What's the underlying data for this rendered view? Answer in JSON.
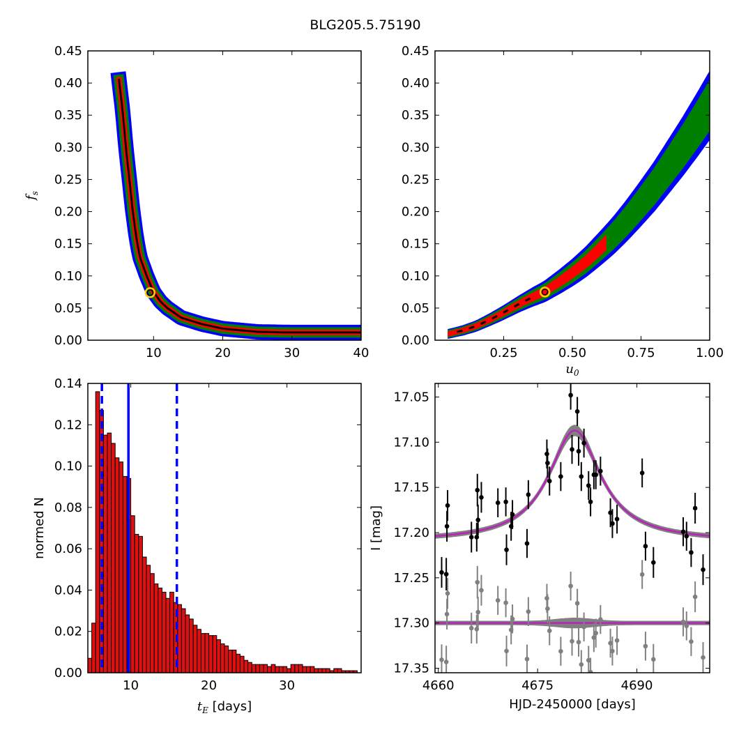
{
  "figure_title": "BLG205.5.75190",
  "colors": {
    "sigma1": "#ff0000",
    "sigma2": "#008000",
    "sigma3": "#0000ff",
    "best": "#000000",
    "marker": "#ffd000",
    "hist_bar": "#dd1111",
    "hist_line": "#0000ff",
    "model": "#bb22bb",
    "band": "#808080",
    "data": "#000000",
    "resid": "#808080"
  },
  "chart_data": [
    {
      "type": "heatmap",
      "xlabel": "",
      "ylabel": "f_s",
      "xlim": [
        0.5,
        40
      ],
      "ylim": [
        0,
        0.45
      ],
      "xticks": [
        "10",
        "20",
        "30",
        "40"
      ],
      "yticks": [
        "0.00",
        "0.05",
        "0.10",
        "0.15",
        "0.20",
        "0.25",
        "0.30",
        "0.35",
        "0.40",
        "0.45"
      ],
      "regions": "confidence contours sigma1 red, sigma2 green, sigma3 blue, best-fit black",
      "ridge": [
        [
          5.0,
          0.405
        ],
        [
          5.5,
          0.36
        ],
        [
          6.0,
          0.3
        ],
        [
          6.5,
          0.25
        ],
        [
          7.0,
          0.2
        ],
        [
          7.5,
          0.16
        ],
        [
          8.0,
          0.13
        ],
        [
          9.0,
          0.1
        ],
        [
          10.0,
          0.075
        ],
        [
          11.0,
          0.06
        ],
        [
          12.0,
          0.05
        ],
        [
          14.0,
          0.035
        ],
        [
          17.0,
          0.025
        ],
        [
          20.0,
          0.018
        ],
        [
          25.0,
          0.013
        ],
        [
          30.0,
          0.012
        ],
        [
          40.0,
          0.012
        ]
      ],
      "best_fit": {
        "x": 9.5,
        "y": 0.074
      }
    },
    {
      "type": "heatmap",
      "xlabel": "u_0",
      "ylabel": "",
      "xlim": [
        0.0,
        1.0
      ],
      "ylim": [
        0,
        0.45
      ],
      "xticks": [
        "0.25",
        "0.50",
        "0.75",
        "1.00"
      ],
      "yticks": [
        "0.00",
        "0.05",
        "0.10",
        "0.15",
        "0.20",
        "0.25",
        "0.30",
        "0.35",
        "0.40",
        "0.45"
      ],
      "regions": "confidence contours sigma1 red, sigma2 green, sigma3 blue, best-fit black",
      "ridge": [
        [
          0.05,
          0.01
        ],
        [
          0.1,
          0.015
        ],
        [
          0.15,
          0.022
        ],
        [
          0.2,
          0.032
        ],
        [
          0.25,
          0.043
        ],
        [
          0.3,
          0.055
        ],
        [
          0.35,
          0.066
        ],
        [
          0.4,
          0.076
        ],
        [
          0.45,
          0.09
        ],
        [
          0.5,
          0.105
        ],
        [
          0.55,
          0.122
        ],
        [
          0.6,
          0.142
        ],
        [
          0.65,
          0.163
        ],
        [
          0.7,
          0.187
        ],
        [
          0.75,
          0.213
        ],
        [
          0.8,
          0.24
        ],
        [
          0.85,
          0.27
        ],
        [
          0.9,
          0.3
        ],
        [
          0.95,
          0.332
        ],
        [
          1.0,
          0.365
        ]
      ],
      "best_fit": {
        "x": 0.4,
        "y": 0.075
      }
    },
    {
      "type": "bar",
      "xlabel": "t_E [days]",
      "ylabel": "normed N",
      "xlim": [
        4.5,
        39.5
      ],
      "ylim": [
        0,
        0.14
      ],
      "xticks": [
        "10",
        "20",
        "30"
      ],
      "yticks": [
        "0.00",
        "0.02",
        "0.04",
        "0.06",
        "0.08",
        "0.10",
        "0.12",
        "0.14"
      ],
      "bin_start": 4.5,
      "bin_width": 0.5,
      "values": [
        0.007,
        0.024,
        0.136,
        0.127,
        0.115,
        0.116,
        0.111,
        0.104,
        0.102,
        0.095,
        0.094,
        0.076,
        0.067,
        0.066,
        0.056,
        0.052,
        0.048,
        0.043,
        0.041,
        0.039,
        0.036,
        0.039,
        0.034,
        0.033,
        0.031,
        0.028,
        0.026,
        0.023,
        0.021,
        0.019,
        0.019,
        0.018,
        0.018,
        0.016,
        0.014,
        0.013,
        0.011,
        0.011,
        0.009,
        0.008,
        0.006,
        0.005,
        0.004,
        0.004,
        0.004,
        0.004,
        0.003,
        0.004,
        0.003,
        0.003,
        0.003,
        0.002,
        0.004,
        0.004,
        0.004,
        0.003,
        0.003,
        0.003,
        0.002,
        0.002,
        0.002,
        0.002,
        0.001,
        0.002,
        0.002,
        0.001,
        0.001,
        0.001,
        0.001,
        0.0
      ],
      "vlines": [
        {
          "x": 6.3,
          "style": "dashed"
        },
        {
          "x": 9.7,
          "style": "solid"
        },
        {
          "x": 15.9,
          "style": "dashed"
        }
      ]
    },
    {
      "type": "scatter",
      "xlabel": "HJD-2450000 [days]",
      "ylabel": "I [mag]",
      "xlim": [
        4659.5,
        4701
      ],
      "ylim": [
        17.355,
        17.035
      ],
      "y_inverted": true,
      "xticks": [
        "4660",
        "4675",
        "4690"
      ],
      "xtick_values": [
        4660,
        4675,
        4690
      ],
      "yticks": [
        "17.05",
        "17.10",
        "17.15",
        "17.20",
        "17.25",
        "17.30",
        "17.35"
      ],
      "ytick_values": [
        17.05,
        17.1,
        17.15,
        17.2,
        17.25,
        17.3,
        17.35
      ],
      "model": {
        "baseline": 17.21,
        "peak_mag": 17.087,
        "t0": 4680.6,
        "tau": 4.8
      },
      "resid_offset": 17.3,
      "observations": [
        {
          "t": 4660.5,
          "mag": 17.244,
          "err": 0.017
        },
        {
          "t": 4661.2,
          "mag": 17.246,
          "err": 0.018
        },
        {
          "t": 4661.3,
          "mag": 17.193,
          "err": 0.017
        },
        {
          "t": 4661.4,
          "mag": 17.17,
          "err": 0.017
        },
        {
          "t": 4665.0,
          "mag": 17.205,
          "err": 0.017
        },
        {
          "t": 4665.8,
          "mag": 17.205,
          "err": 0.016
        },
        {
          "t": 4665.9,
          "mag": 17.153,
          "err": 0.018
        },
        {
          "t": 4666.0,
          "mag": 17.186,
          "err": 0.017
        },
        {
          "t": 4666.5,
          "mag": 17.161,
          "err": 0.017
        },
        {
          "t": 4669.0,
          "mag": 17.167,
          "err": 0.016
        },
        {
          "t": 4670.2,
          "mag": 17.166,
          "err": 0.016
        },
        {
          "t": 4670.3,
          "mag": 17.219,
          "err": 0.017
        },
        {
          "t": 4671.0,
          "mag": 17.193,
          "err": 0.016
        },
        {
          "t": 4671.2,
          "mag": 17.18,
          "err": 0.016
        },
        {
          "t": 4673.4,
          "mag": 17.212,
          "err": 0.016
        },
        {
          "t": 4673.6,
          "mag": 17.158,
          "err": 0.016
        },
        {
          "t": 4676.4,
          "mag": 17.113,
          "err": 0.016
        },
        {
          "t": 4676.5,
          "mag": 17.123,
          "err": 0.016
        },
        {
          "t": 4676.8,
          "mag": 17.143,
          "err": 0.016
        },
        {
          "t": 4678.5,
          "mag": 17.138,
          "err": 0.016
        },
        {
          "t": 4680.0,
          "mag": 17.048,
          "err": 0.016
        },
        {
          "t": 4680.2,
          "mag": 17.108,
          "err": 0.016
        },
        {
          "t": 4681.0,
          "mag": 17.066,
          "err": 0.016
        },
        {
          "t": 4681.2,
          "mag": 17.11,
          "err": 0.016
        },
        {
          "t": 4681.6,
          "mag": 17.138,
          "err": 0.016
        },
        {
          "t": 4682.0,
          "mag": 17.101,
          "err": 0.016
        },
        {
          "t": 4682.7,
          "mag": 17.148,
          "err": 0.016
        },
        {
          "t": 4683.0,
          "mag": 17.166,
          "err": 0.016
        },
        {
          "t": 4683.5,
          "mag": 17.136,
          "err": 0.016
        },
        {
          "t": 4683.8,
          "mag": 17.136,
          "err": 0.016
        },
        {
          "t": 4684.5,
          "mag": 17.132,
          "err": 0.016
        },
        {
          "t": 4686.0,
          "mag": 17.178,
          "err": 0.016
        },
        {
          "t": 4686.3,
          "mag": 17.19,
          "err": 0.016
        },
        {
          "t": 4687.0,
          "mag": 17.185,
          "err": 0.016
        },
        {
          "t": 4690.8,
          "mag": 17.134,
          "err": 0.016
        },
        {
          "t": 4691.3,
          "mag": 17.215,
          "err": 0.016
        },
        {
          "t": 4692.5,
          "mag": 17.233,
          "err": 0.017
        },
        {
          "t": 4697.0,
          "mag": 17.199,
          "err": 0.016
        },
        {
          "t": 4697.5,
          "mag": 17.204,
          "err": 0.016
        },
        {
          "t": 4698.2,
          "mag": 17.222,
          "err": 0.016
        },
        {
          "t": 4698.8,
          "mag": 17.173,
          "err": 0.017
        },
        {
          "t": 4700.0,
          "mag": 17.241,
          "err": 0.017
        }
      ]
    }
  ]
}
